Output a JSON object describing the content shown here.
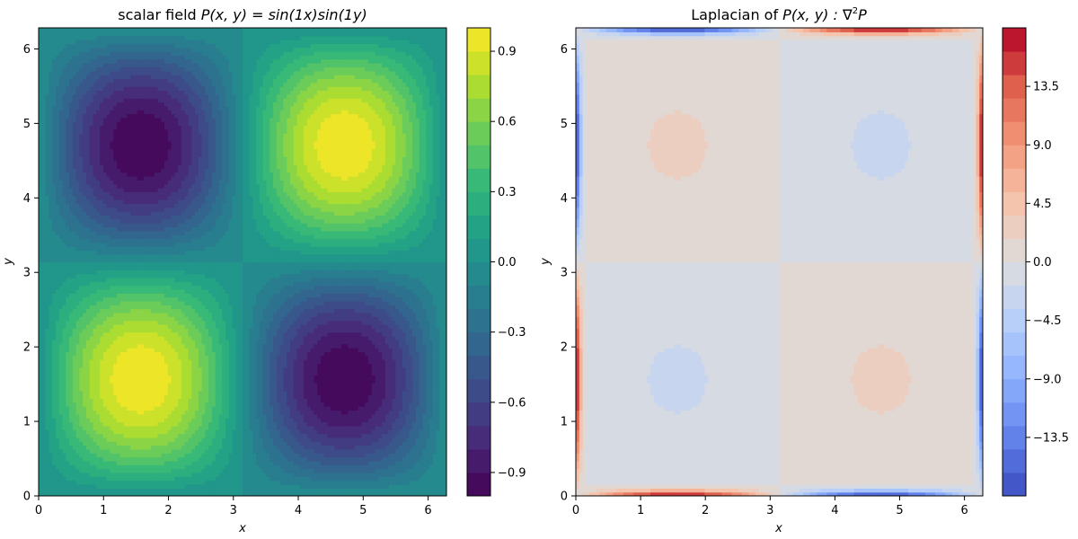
{
  "chart_data": [
    {
      "type": "heatmap",
      "title": "scalar field $P(x, y) = sin(1x)sin(1y)$",
      "title_plain": "scalar field ",
      "title_math": "P(x, y) = sin(1x)sin(1y)",
      "xlabel": "x",
      "ylabel": "y",
      "function": "sin(1x)sin(1y)",
      "xlim": [
        0,
        6.283
      ],
      "ylim": [
        0,
        6.283
      ],
      "xticks": [
        0,
        1,
        2,
        3,
        4,
        5,
        6
      ],
      "yticks": [
        0,
        1,
        2,
        3,
        4,
        5,
        6
      ],
      "grid": false,
      "colormap": "viridis",
      "levels": 20,
      "colorbar": {
        "range": [
          -1.0,
          1.0
        ],
        "ticks": [
          -0.9,
          -0.6,
          -0.3,
          0.0,
          0.3,
          0.6,
          0.9
        ],
        "tick_labels": [
          "−0.9",
          "−0.6",
          "−0.3",
          "0.0",
          "0.3",
          "0.6",
          "0.9"
        ]
      },
      "features": [
        {
          "x": 1.571,
          "y": 1.571,
          "value": 1.0
        },
        {
          "x": 4.712,
          "y": 4.712,
          "value": 1.0
        },
        {
          "x": 1.571,
          "y": 4.712,
          "value": -1.0
        },
        {
          "x": 4.712,
          "y": 1.571,
          "value": -1.0
        }
      ]
    },
    {
      "type": "heatmap",
      "title": "Laplacian of $P(x, y) : ∇^2 P$",
      "title_plain": "Laplacian of ",
      "title_math": "P(x, y) : ∇",
      "title_sup": "2",
      "title_tail": "P",
      "xlabel": "x",
      "ylabel": "y",
      "xlim": [
        0,
        6.283
      ],
      "ylim": [
        0,
        6.283
      ],
      "xticks": [
        0,
        1,
        2,
        3,
        4,
        5,
        6
      ],
      "yticks": [
        0,
        1,
        2,
        3,
        4,
        5,
        6
      ],
      "grid": false,
      "colormap": "coolwarm",
      "levels": 20,
      "colorbar": {
        "range": [
          -18.0,
          18.0
        ],
        "ticks": [
          -13.5,
          -9.0,
          -4.5,
          0.0,
          4.5,
          9.0,
          13.5
        ],
        "tick_labels": [
          "−13.5",
          "−9.0",
          "−4.5",
          "0.0",
          "4.5",
          "9.0",
          "13.5"
        ]
      },
      "features": [
        {
          "x": 1.571,
          "y": 4.712,
          "value": 2.0
        },
        {
          "x": 4.712,
          "y": 1.571,
          "value": 2.0
        },
        {
          "x": 1.571,
          "y": 1.571,
          "value": -2.0
        },
        {
          "x": 4.712,
          "y": 4.712,
          "value": -2.0
        },
        {
          "edge": "bottom",
          "x_range": [
            0.0,
            3.14
          ],
          "value": 18.0
        },
        {
          "edge": "bottom",
          "x_range": [
            3.14,
            6.28
          ],
          "value": -18.0
        },
        {
          "edge": "top",
          "x_range": [
            0.0,
            3.14
          ],
          "value": -18.0
        },
        {
          "edge": "top",
          "x_range": [
            3.14,
            6.28
          ],
          "value": 18.0
        },
        {
          "edge": "left",
          "y_range": [
            0.0,
            3.14
          ],
          "value": 18.0
        },
        {
          "edge": "left",
          "y_range": [
            3.14,
            6.28
          ],
          "value": -18.0
        },
        {
          "edge": "right",
          "y_range": [
            0.0,
            3.14
          ],
          "value": -18.0
        },
        {
          "edge": "right",
          "y_range": [
            3.14,
            6.28
          ],
          "value": 18.0
        }
      ]
    }
  ]
}
